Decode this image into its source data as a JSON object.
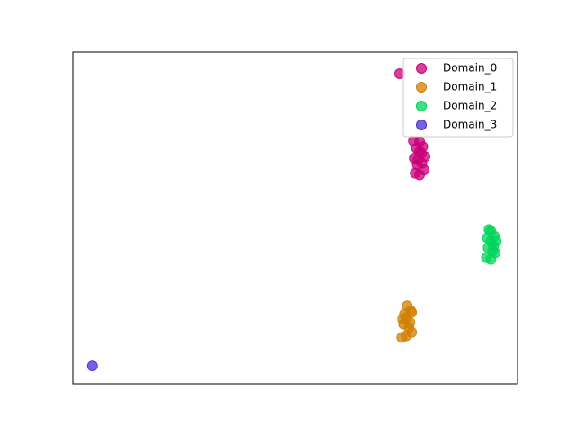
{
  "chart_data": {
    "type": "scatter",
    "xlim": [
      0,
      100
    ],
    "ylim": [
      0,
      100
    ],
    "legend": "upper right",
    "series": [
      {
        "name": "Domain_0",
        "color": "#c8007a",
        "x": [
          73.5,
          77.0,
          78.0,
          79.0,
          77.5,
          78.5,
          76.8,
          79.2,
          78.0,
          77.3,
          78.7,
          78.0,
          77.6,
          78.4,
          76.6
        ],
        "values": [
          93.5,
          63.5,
          63.0,
          64.5,
          66.0,
          66.5,
          68.0,
          68.5,
          70.0,
          71.0,
          71.5,
          73.0,
          67.5,
          69.5,
          73.2
        ]
      },
      {
        "name": "Domain_1",
        "color": "#d07f00",
        "x": [
          74.0,
          75.0,
          76.2,
          75.6,
          74.4,
          75.8,
          75.0,
          74.6,
          76.0,
          75.2,
          74.2,
          76.2
        ],
        "values": [
          14.0,
          14.5,
          15.5,
          17.0,
          18.0,
          18.5,
          20.0,
          21.0,
          22.0,
          23.5,
          19.5,
          21.5
        ]
      },
      {
        "name": "Domain_2",
        "color": "#00d45a",
        "x": [
          93.0,
          94.0,
          95.0,
          93.4,
          94.6,
          94.0,
          93.2,
          94.8,
          94.0,
          93.6,
          94.4,
          95.2
        ],
        "values": [
          38.0,
          37.5,
          39.5,
          41.0,
          41.5,
          43.0,
          44.0,
          44.5,
          46.0,
          46.5,
          40.0,
          43.0
        ]
      },
      {
        "name": "Domain_3",
        "color": "#4b2bd6",
        "x": [
          4.4
        ],
        "values": [
          5.4
        ]
      }
    ]
  }
}
